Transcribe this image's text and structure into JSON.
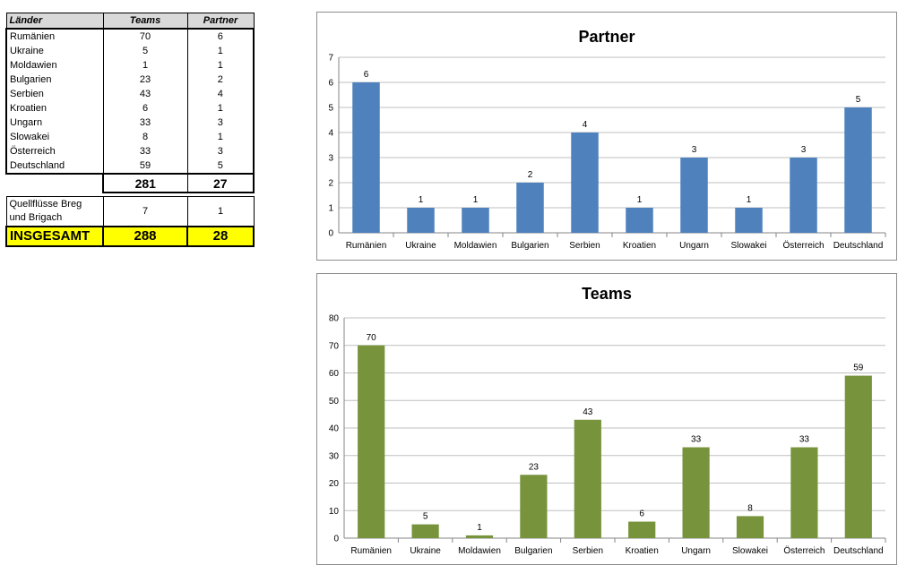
{
  "table": {
    "headers": [
      "Länder",
      "Teams",
      "Partner"
    ],
    "rows": [
      {
        "land": "Rumänien",
        "teams": "70",
        "partner": "6"
      },
      {
        "land": "Ukraine",
        "teams": "5",
        "partner": "1"
      },
      {
        "land": "Moldawien",
        "teams": "1",
        "partner": "1"
      },
      {
        "land": "Bulgarien",
        "teams": "23",
        "partner": "2"
      },
      {
        "land": "Serbien",
        "teams": "43",
        "partner": "4"
      },
      {
        "land": "Kroatien",
        "teams": "6",
        "partner": "1"
      },
      {
        "land": "Ungarn",
        "teams": "33",
        "partner": "3"
      },
      {
        "land": "Slowakei",
        "teams": "8",
        "partner": "1"
      },
      {
        "land": "Österreich",
        "teams": "33",
        "partner": "3"
      },
      {
        "land": "Deutschland",
        "teams": "59",
        "partner": "5"
      }
    ],
    "subtotal": {
      "teams": "281",
      "partner": "27"
    },
    "quelle": {
      "land_line1": "Quellflüsse Breg",
      "land_line2": "und Brigach",
      "teams": "7",
      "partner": "1"
    },
    "total": {
      "label": "INSGESAMT",
      "teams": "288",
      "partner": "28"
    }
  },
  "chart_data": [
    {
      "id": "partner",
      "type": "bar",
      "title": "Partner",
      "categories": [
        "Rumänien",
        "Ukraine",
        "Moldawien",
        "Bulgarien",
        "Serbien",
        "Kroatien",
        "Ungarn",
        "Slowakei",
        "Österreich",
        "Deutschland"
      ],
      "values": [
        6,
        1,
        1,
        2,
        4,
        1,
        3,
        1,
        3,
        5
      ],
      "ylim": [
        0,
        7
      ],
      "yticks": [
        0,
        1,
        2,
        3,
        4,
        5,
        6,
        7
      ],
      "grid": true,
      "color": "#4f81bd",
      "data_labels": true
    },
    {
      "id": "teams",
      "type": "bar",
      "title": "Teams",
      "categories": [
        "Rumänien",
        "Ukraine",
        "Moldawien",
        "Bulgarien",
        "Serbien",
        "Kroatien",
        "Ungarn",
        "Slowakei",
        "Österreich",
        "Deutschland"
      ],
      "values": [
        70,
        5,
        1,
        23,
        43,
        6,
        33,
        8,
        33,
        59
      ],
      "ylim": [
        0,
        80
      ],
      "yticks": [
        0,
        10,
        20,
        30,
        40,
        50,
        60,
        70,
        80
      ],
      "grid": true,
      "color": "#77933c",
      "data_labels": true
    }
  ]
}
